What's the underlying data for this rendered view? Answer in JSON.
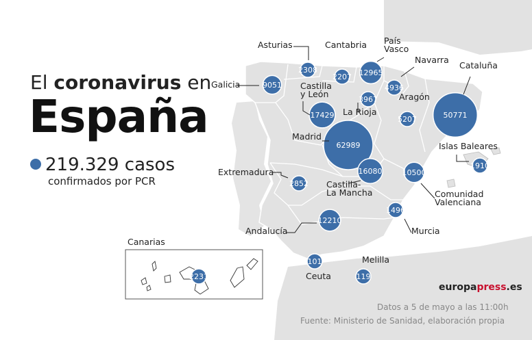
{
  "title": {
    "prefix": "El",
    "emphasis": "coronavirus",
    "suffix": "en",
    "country": "España"
  },
  "total": {
    "value": "219.329 casos",
    "subtitle": "confirmados por PCR"
  },
  "inset_label": "Canarias",
  "brand": {
    "name": "europa",
    "accent": "press",
    "domain": ".es"
  },
  "date_note": "Datos a 5 de mayo a las 11:00h",
  "source_note": "Fuente: Ministerio de Sanidad, elaboración propia",
  "colors": {
    "bubble": "#3d6ea8",
    "land": "#e2e2e2",
    "sea": "#c9c9c9",
    "border": "#ffffff"
  },
  "regions": [
    {
      "label": "Galicia",
      "value": 9051
    },
    {
      "label": "Asturias",
      "value": 2308
    },
    {
      "label": "Cantabria",
      "value": 2207
    },
    {
      "label": "País\nVasco",
      "value": 12965
    },
    {
      "label": "Navarra",
      "value": 4936
    },
    {
      "label": "Cataluña",
      "value": 50771
    },
    {
      "label": "Castilla\ny León",
      "value": 17429
    },
    {
      "label": "La Rioja",
      "value": 3967
    },
    {
      "label": "Aragón",
      "value": 5207
    },
    {
      "label": "Madrid",
      "value": 62989
    },
    {
      "label": "Castilla-\nLa Mancha",
      "value": 16080
    },
    {
      "label": "Islas Baleares",
      "value": 1910
    },
    {
      "label": "Extremadura",
      "value": 2852
    },
    {
      "label": "Comunidad\nValenciana",
      "value": 10500
    },
    {
      "label": "Murcia",
      "value": 1496
    },
    {
      "label": "Andalucía",
      "value": 12210
    },
    {
      "label": "Ceuta",
      "value": 101
    },
    {
      "label": "Melilla",
      "value": 119
    },
    {
      "label": "Canarias",
      "value": 2231
    }
  ]
}
